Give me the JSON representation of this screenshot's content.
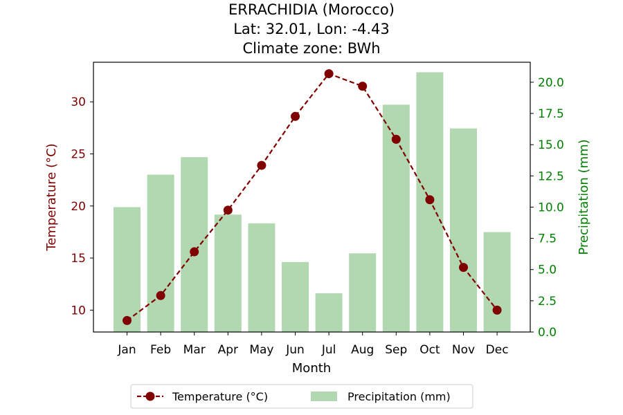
{
  "title_lines": [
    "ERRACHIDIA (Morocco)",
    "Lat: 32.01, Lon: -4.43",
    "Climate zone: BWh"
  ],
  "colors": {
    "temperature": "#800000",
    "precipitation_bar": "#b2d8b2",
    "precipitation_axis": "#008000"
  },
  "chart_data": {
    "type": "bar+line",
    "categories": [
      "Jan",
      "Feb",
      "Mar",
      "Apr",
      "May",
      "Jun",
      "Jul",
      "Aug",
      "Sep",
      "Oct",
      "Nov",
      "Dec"
    ],
    "xlabel": "Month",
    "y_left": {
      "label": "Temperature (°C)",
      "range": [
        7.9,
        33.8
      ],
      "ticks": [
        10,
        15,
        20,
        25,
        30
      ]
    },
    "y_right": {
      "label": "Precipitation (mm)",
      "range": [
        0,
        21.6
      ],
      "ticks": [
        "0.0",
        "2.5",
        "5.0",
        "7.5",
        "10.0",
        "12.5",
        "15.0",
        "17.5",
        "20.0"
      ]
    },
    "series": [
      {
        "name": "Temperature (°C)",
        "kind": "line",
        "axis": "left",
        "values": [
          9.0,
          11.4,
          15.6,
          19.6,
          23.9,
          28.6,
          32.7,
          31.5,
          26.4,
          20.6,
          14.1,
          10.0
        ]
      },
      {
        "name": "Precipitation (mm)",
        "kind": "bar",
        "axis": "right",
        "values": [
          10.0,
          12.6,
          14.0,
          9.4,
          8.7,
          5.6,
          3.1,
          6.3,
          18.2,
          20.8,
          16.3,
          8.0
        ]
      }
    ],
    "legend": {
      "placement": "bottom-center",
      "entries": [
        "Temperature (°C)",
        "Precipitation (mm)"
      ]
    },
    "grid": false
  }
}
